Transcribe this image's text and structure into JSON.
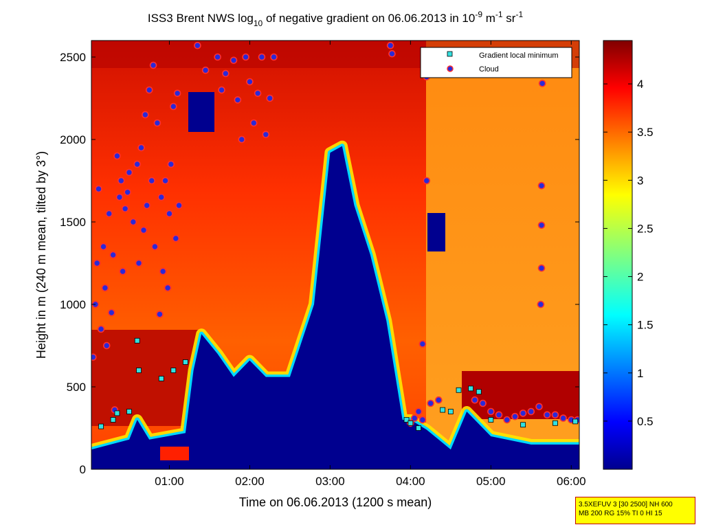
{
  "chart_data": {
    "type": "heatmap",
    "title": {
      "p1": "ISS3 Brent NWS log",
      "p1_sub": "10",
      "p2": " of negative gradient on 06.06.2013 in 10",
      "p2_sup": "-9",
      "p3": " m",
      "p3_sup": "-1",
      "p4": " sr",
      "p4_sup": "-1"
    },
    "xlabel": "Time on 06.06.2013 (1200 s mean)",
    "ylabel": "Height in m (240 m mean, tilted by 3°)",
    "x_tick_labels": [
      "01:00",
      "02:00",
      "03:00",
      "04:00",
      "05:00",
      "06:00"
    ],
    "x_tick_hours": [
      1,
      2,
      3,
      4,
      5,
      6
    ],
    "xlim_hours": [
      0.03,
      6.1
    ],
    "y_ticks": [
      0,
      500,
      1000,
      1500,
      2000,
      2500
    ],
    "ylim": [
      0,
      2600
    ],
    "colorbar": {
      "ticks": [
        "0.5",
        "1",
        "1.5",
        "2",
        "2.5",
        "3",
        "3.5",
        "4"
      ],
      "tick_values": [
        0.5,
        1,
        1.5,
        2,
        2.5,
        3,
        3.5,
        4
      ],
      "range": [
        0,
        4.45
      ],
      "colormap": "jet"
    },
    "legend": {
      "placement": "top-right",
      "entries": [
        {
          "label": "Gradient local minimum",
          "marker": "square",
          "color": "#33e0e0"
        },
        {
          "label": "Cloud",
          "marker": "circle",
          "color": "#2a2ad8",
          "edge": "#ff3030"
        }
      ]
    },
    "low_gradient_region_top_m": [
      [
        0.03,
        120
      ],
      [
        0.5,
        180
      ],
      [
        0.6,
        300
      ],
      [
        0.75,
        180
      ],
      [
        1.2,
        220
      ],
      [
        1.3,
        600
      ],
      [
        1.4,
        820
      ],
      [
        1.6,
        700
      ],
      [
        1.8,
        560
      ],
      [
        2.0,
        660
      ],
      [
        2.2,
        560
      ],
      [
        2.5,
        560
      ],
      [
        2.8,
        1000
      ],
      [
        3.0,
        1920
      ],
      [
        3.15,
        1960
      ],
      [
        3.3,
        1600
      ],
      [
        3.5,
        1300
      ],
      [
        3.7,
        900
      ],
      [
        3.8,
        600
      ],
      [
        3.9,
        300
      ],
      [
        4.0,
        300
      ],
      [
        4.2,
        240
      ],
      [
        4.5,
        120
      ],
      [
        4.7,
        350
      ],
      [
        5.0,
        200
      ],
      [
        5.5,
        150
      ],
      [
        6.1,
        150
      ]
    ],
    "cloud_heights_m": [
      [
        0.05,
        680
      ],
      [
        0.08,
        1000
      ],
      [
        0.1,
        1250
      ],
      [
        0.12,
        1700
      ],
      [
        0.15,
        850
      ],
      [
        0.18,
        1350
      ],
      [
        0.2,
        1100
      ],
      [
        0.22,
        750
      ],
      [
        0.25,
        1550
      ],
      [
        0.28,
        950
      ],
      [
        0.3,
        1300
      ],
      [
        0.32,
        360
      ],
      [
        0.35,
        1900
      ],
      [
        0.38,
        1650
      ],
      [
        0.4,
        1750
      ],
      [
        0.42,
        1200
      ],
      [
        0.45,
        1580
      ],
      [
        0.48,
        1680
      ],
      [
        0.5,
        1800
      ],
      [
        0.55,
        1500
      ],
      [
        0.6,
        1850
      ],
      [
        0.62,
        1250
      ],
      [
        0.65,
        1950
      ],
      [
        0.68,
        1450
      ],
      [
        0.7,
        2150
      ],
      [
        0.72,
        1600
      ],
      [
        0.75,
        2300
      ],
      [
        0.78,
        1750
      ],
      [
        0.8,
        2450
      ],
      [
        0.82,
        1350
      ],
      [
        0.85,
        2100
      ],
      [
        0.88,
        940
      ],
      [
        0.9,
        1650
      ],
      [
        0.92,
        1200
      ],
      [
        0.95,
        1750
      ],
      [
        0.98,
        1100
      ],
      [
        1.0,
        1550
      ],
      [
        1.02,
        1850
      ],
      [
        1.05,
        2200
      ],
      [
        1.08,
        1400
      ],
      [
        1.1,
        2280
      ],
      [
        1.12,
        1600
      ],
      [
        1.35,
        2570
      ],
      [
        1.45,
        2420
      ],
      [
        1.6,
        2500
      ],
      [
        1.65,
        2300
      ],
      [
        1.7,
        2400
      ],
      [
        1.8,
        2480
      ],
      [
        1.85,
        2240
      ],
      [
        1.9,
        2000
      ],
      [
        1.95,
        2500
      ],
      [
        2.0,
        2350
      ],
      [
        2.05,
        2100
      ],
      [
        2.1,
        2280
      ],
      [
        2.15,
        2500
      ],
      [
        2.2,
        2030
      ],
      [
        2.25,
        2250
      ],
      [
        2.3,
        2500
      ],
      [
        3.75,
        2570
      ],
      [
        3.77,
        2520
      ],
      [
        4.15,
        760
      ],
      [
        4.2,
        1750
      ],
      [
        4.2,
        2380
      ],
      [
        4.0,
        280
      ],
      [
        4.05,
        310
      ],
      [
        4.1,
        350
      ],
      [
        4.15,
        300
      ],
      [
        4.25,
        400
      ],
      [
        4.35,
        420
      ],
      [
        4.8,
        420
      ],
      [
        4.9,
        400
      ],
      [
        5.0,
        350
      ],
      [
        5.1,
        330
      ],
      [
        5.2,
        300
      ],
      [
        5.3,
        320
      ],
      [
        5.4,
        340
      ],
      [
        5.5,
        350
      ],
      [
        5.6,
        380
      ],
      [
        5.62,
        1000
      ],
      [
        5.63,
        1220
      ],
      [
        5.63,
        1480
      ],
      [
        5.63,
        1720
      ],
      [
        5.64,
        2340
      ],
      [
        5.7,
        330
      ],
      [
        5.8,
        330
      ],
      [
        5.9,
        310
      ],
      [
        6.0,
        300
      ],
      [
        6.08,
        300
      ]
    ],
    "gradient_local_minimum_m": [
      [
        0.15,
        260
      ],
      [
        0.3,
        300
      ],
      [
        0.35,
        340
      ],
      [
        0.5,
        350
      ],
      [
        0.6,
        780
      ],
      [
        0.62,
        600
      ],
      [
        0.9,
        550
      ],
      [
        1.05,
        600
      ],
      [
        1.2,
        650
      ],
      [
        3.95,
        300
      ],
      [
        4.0,
        280
      ],
      [
        4.1,
        250
      ],
      [
        4.4,
        360
      ],
      [
        4.5,
        350
      ],
      [
        4.6,
        480
      ],
      [
        4.75,
        490
      ],
      [
        4.85,
        470
      ],
      [
        5.0,
        300
      ],
      [
        5.4,
        270
      ],
      [
        5.8,
        280
      ],
      [
        6.05,
        290
      ]
    ]
  }
}
